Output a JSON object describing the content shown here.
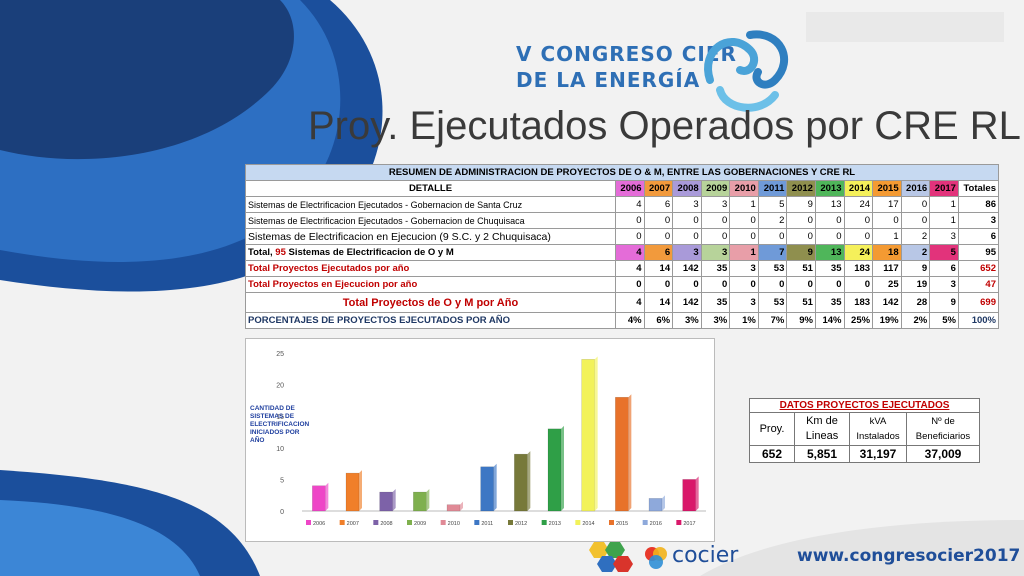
{
  "slide": {
    "title": "Proy. Ejecutados Operados por CRE RL",
    "logo_line1": "V CONGRESO CIER",
    "logo_line2": "DE LA ENERGÍA",
    "footer_url": "www.congresocier2017",
    "cocier": "cocier"
  },
  "table": {
    "header": "RESUMEN  DE  ADMINISTRACION  DE  PROYECTOS  DE  O & M,  ENTRE  LAS   GOBERNACIONES  Y CRE RL",
    "detalle": "DETALLE",
    "totales": "Totales",
    "years": [
      "2006",
      "2007",
      "2008",
      "2009",
      "2010",
      "2011",
      "2012",
      "2013",
      "2014",
      "2015",
      "2016",
      "2017"
    ],
    "year_colors": [
      "#e46cd8",
      "#f29a3c",
      "#a99ad9",
      "#b7d39a",
      "#e89ea8",
      "#6f9ad8",
      "#8f8f4e",
      "#4fb65a",
      "#f5f05a",
      "#f49a32",
      "#b8c7e6",
      "#e2337b"
    ],
    "rows": [
      {
        "label": "Sistemas de Electrificacion Ejecutados - Gobernacion de Santa Cruz",
        "values": [
          "4",
          "6",
          "3",
          "3",
          "1",
          "5",
          "9",
          "13",
          "24",
          "17",
          "0",
          "1"
        ],
        "total": "86",
        "style": "plain"
      },
      {
        "label": "Sistemas de Electrificacion Ejecutados  - Gobernacion de Chuquisaca",
        "values": [
          "0",
          "0",
          "0",
          "0",
          "0",
          "2",
          "0",
          "0",
          "0",
          "0",
          "0",
          "1"
        ],
        "total": "3",
        "style": "plain"
      },
      {
        "label": "Sistemas de Electrificacion  en  Ejecucion (9 S.C. y 2 Chuquisaca)",
        "values": [
          "0",
          "0",
          "0",
          "0",
          "0",
          "0",
          "0",
          "0",
          "0",
          "1",
          "2",
          "3"
        ],
        "total": "6",
        "style": "plain"
      },
      {
        "label_a": "Total, ",
        "label_b": "95",
        "label_c": " Sistemas de Electrificacion  de  O y M",
        "values": [
          "4",
          "6",
          "3",
          "3",
          "1",
          "7",
          "9",
          "13",
          "24",
          "18",
          "2",
          "5"
        ],
        "total": "95",
        "style": "colored"
      },
      {
        "label": "Total  Proyectos  Ejecutados  por  año",
        "values": [
          "4",
          "14",
          "142",
          "35",
          "3",
          "53",
          "51",
          "35",
          "183",
          "117",
          "9",
          "6"
        ],
        "total": "652",
        "style": "red"
      },
      {
        "label": "Total Proyectos  en Ejecucion por año",
        "values": [
          "0",
          "0",
          "0",
          "0",
          "0",
          "0",
          "0",
          "0",
          "0",
          "25",
          "19",
          "3"
        ],
        "total": "47",
        "style": "red"
      },
      {
        "label": "Total  Proyectos  de O y M  por Año",
        "values": [
          "4",
          "14",
          "142",
          "35",
          "3",
          "53",
          "51",
          "35",
          "183",
          "142",
          "28",
          "9"
        ],
        "total": "699",
        "style": "redbig"
      },
      {
        "label": "PORCENTAJES  DE  PROYECTOS EJECUTADOS POR AÑO",
        "values": [
          "4%",
          "6%",
          "3%",
          "3%",
          "1%",
          "7%",
          "9%",
          "14%",
          "25%",
          "19%",
          "2%",
          "5%"
        ],
        "total": "100%",
        "style": "navy"
      }
    ]
  },
  "chart_data": {
    "type": "bar",
    "categories": [
      "2006",
      "2007",
      "2008",
      "2009",
      "2010",
      "2011",
      "2012",
      "2013",
      "2014",
      "2015",
      "2016",
      "2017"
    ],
    "values": [
      4,
      6,
      3,
      3,
      1,
      7,
      9,
      13,
      24,
      18,
      2,
      5
    ],
    "ylim": [
      0,
      25
    ],
    "yticks": [
      "0",
      "5",
      "10",
      "15",
      "20",
      "25"
    ],
    "side_label": "CANTIDAD DE SISTEMAS DE ELECTRIFICACION INICIADOS POR AÑO",
    "legend": "bottom",
    "colors": [
      "#ee46c7",
      "#f07f2a",
      "#7d62a8",
      "#7fb04e",
      "#e08a96",
      "#3d77c4",
      "#77793a",
      "#2f9f47",
      "#f2f25a",
      "#e8722a",
      "#8ea9db",
      "#d9186a"
    ]
  },
  "datos": {
    "title": "DATOS PROYECTOS EJECUTADOS",
    "col_proy": "Proy.",
    "col_km_1": "Km de",
    "col_km_2": "Lineas",
    "col_kva_1": "kVA",
    "col_kva_2": "Instalados",
    "col_ben_1": "Nº de",
    "col_ben_2": "Beneficiarios",
    "val_proy": "652",
    "val_km": "5,851",
    "val_kva": "31,197",
    "val_ben": "37,009"
  }
}
